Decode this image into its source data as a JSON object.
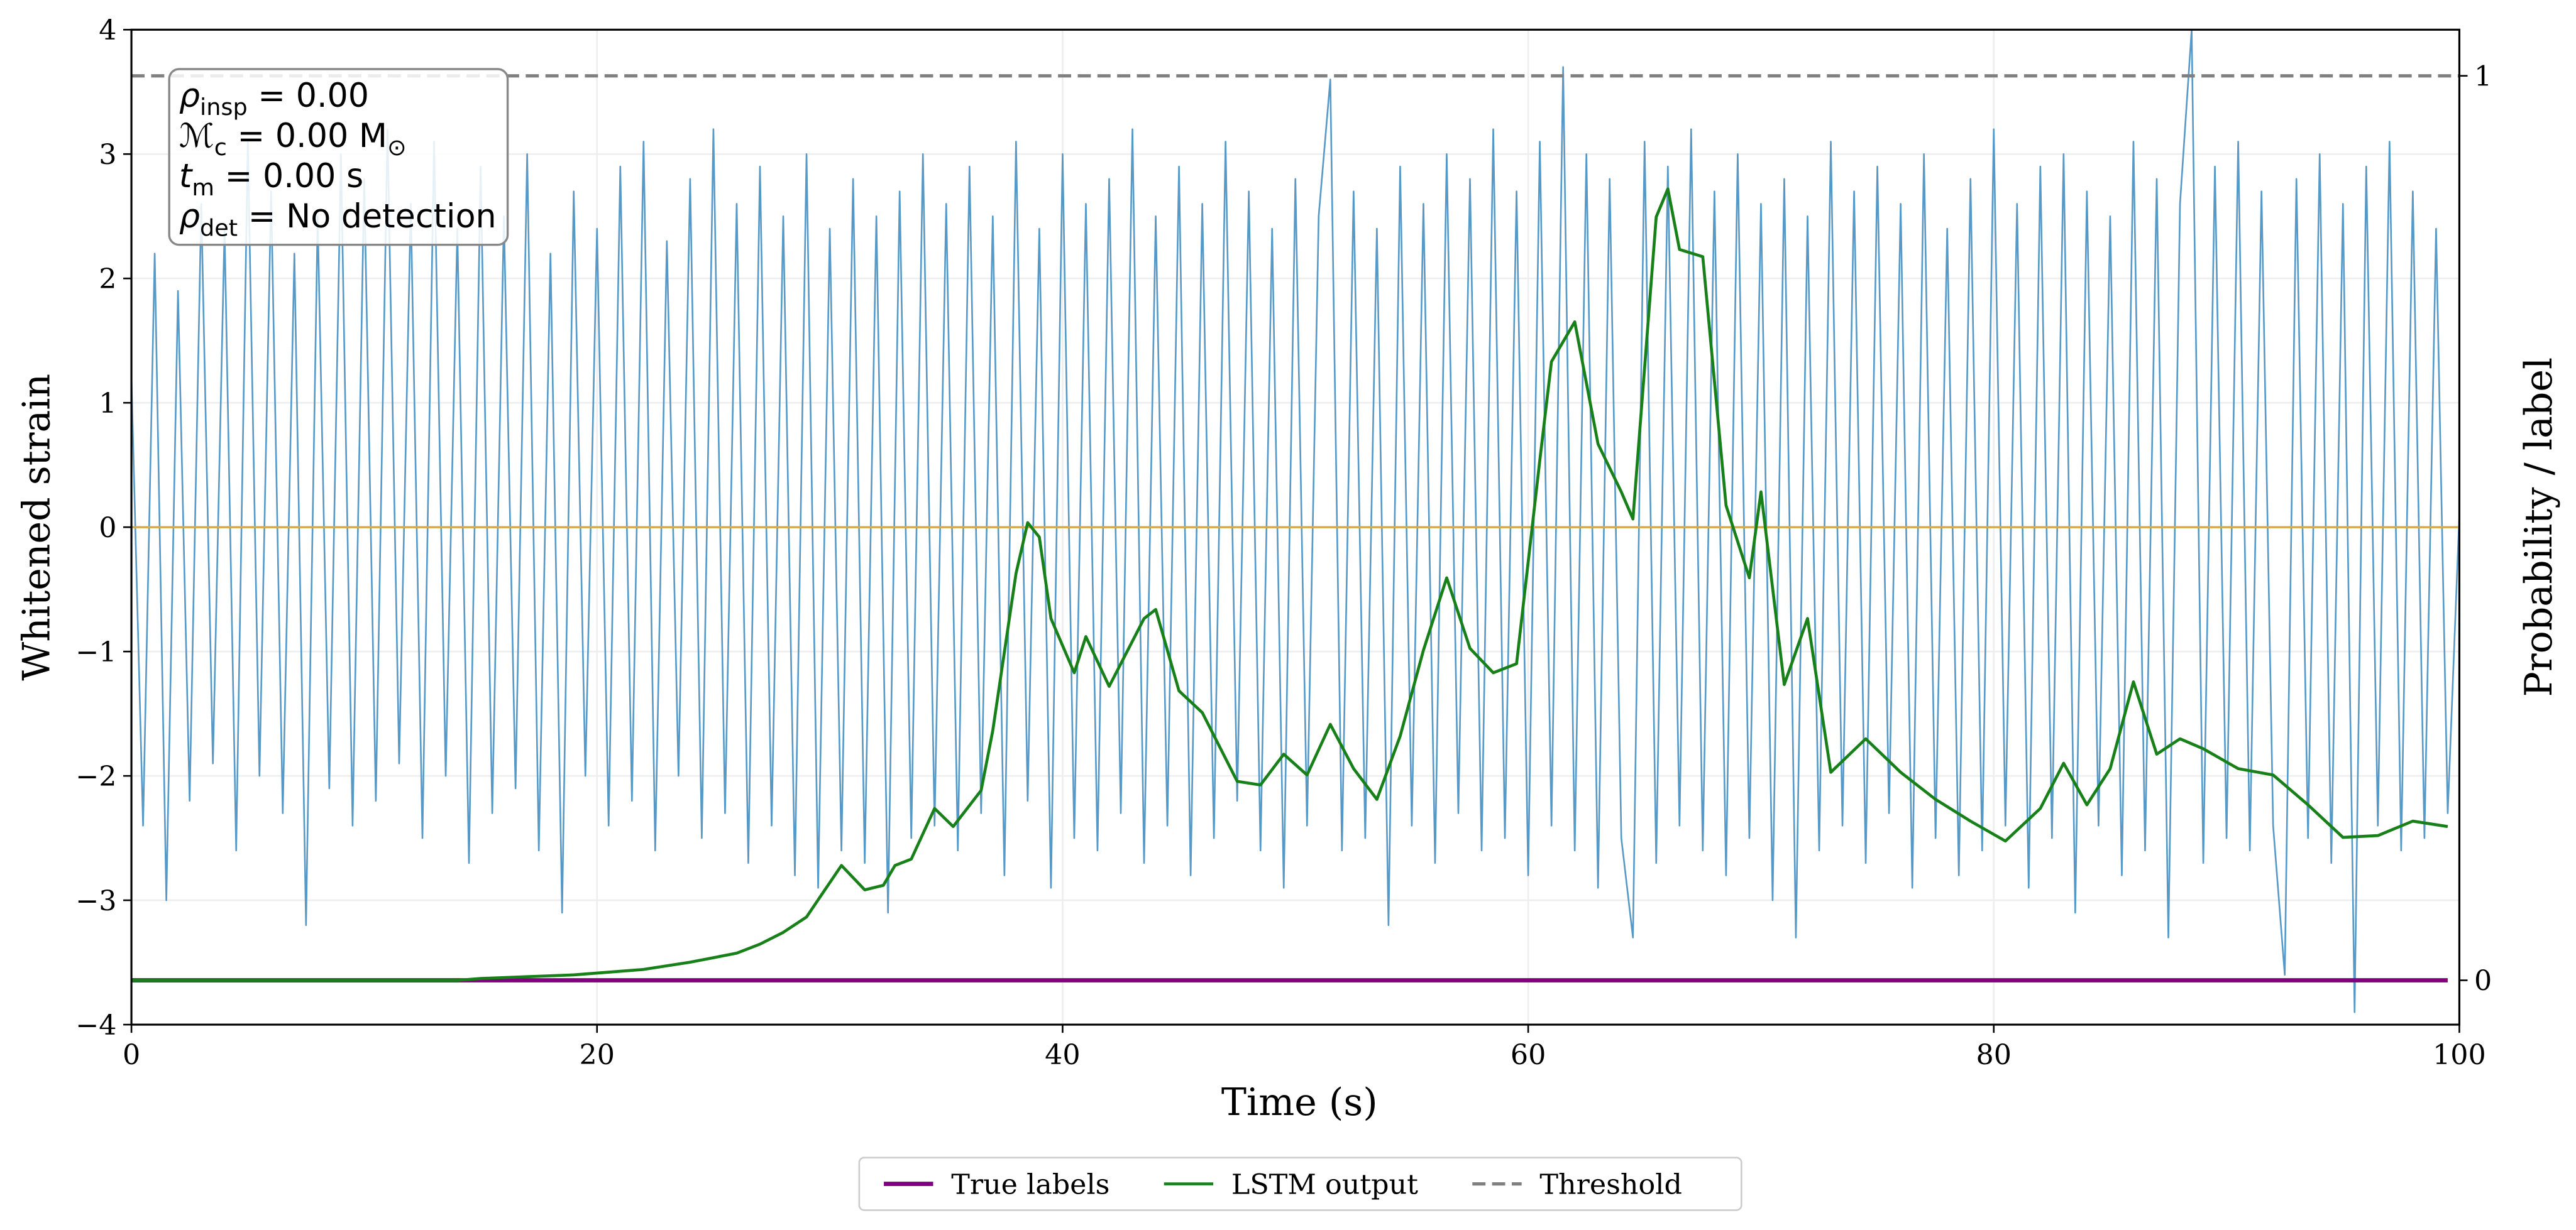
{
  "chart_data": {
    "type": "line",
    "xlabel": "Time (s)",
    "ylabel": "Whitened strain",
    "y2label": "Probability / label",
    "xlim": [
      0,
      100
    ],
    "ylim": [
      -4,
      4
    ],
    "y2lim": [
      -0.049,
      1.051
    ],
    "xticks": [
      0,
      20,
      40,
      60,
      80,
      100
    ],
    "yticks": [
      {
        "value": -4,
        "label": "−4"
      },
      {
        "value": -3,
        "label": "−3"
      },
      {
        "value": -2,
        "label": "−2"
      },
      {
        "value": -1,
        "label": "−1"
      },
      0,
      1,
      2,
      3,
      4
    ],
    "y2ticks": [
      0,
      1
    ],
    "grid": true,
    "legend": "lower center",
    "hlines": [
      {
        "y": 0,
        "color": "#d4aa4c"
      }
    ],
    "annotation": [
      {
        "symbol": "ρ",
        "sub": "insp",
        "text": " = 0.00"
      },
      {
        "symbol": "ℳ",
        "sub": "c",
        "text": " = 0.00 M",
        "sub2": "⊙"
      },
      {
        "symbol": "t",
        "sub": "m",
        "text": " = 0.00 s"
      },
      {
        "symbol": "ρ",
        "sub": "det",
        "text": " = No detection"
      }
    ],
    "series": [
      {
        "color": "#5698c6",
        "linestyle": "solid",
        "x": [
          0,
          0.5,
          1,
          1.5,
          2,
          2.5,
          3,
          3.5,
          4,
          4.5,
          5,
          5.5,
          6,
          6.5,
          7,
          7.5,
          8,
          8.5,
          9,
          9.5,
          10,
          10.5,
          11,
          11.5,
          12,
          12.5,
          13,
          13.5,
          14,
          14.5,
          15,
          15.5,
          16,
          16.5,
          17,
          17.5,
          18,
          18.5,
          19,
          19.5,
          20,
          20.5,
          21,
          21.5,
          22,
          22.5,
          23,
          23.5,
          24,
          24.5,
          25,
          25.5,
          26,
          26.5,
          27,
          27.5,
          28,
          28.5,
          29,
          29.5,
          30,
          30.5,
          31,
          31.5,
          32,
          32.5,
          33,
          33.5,
          34,
          34.5,
          35,
          35.5,
          36,
          36.5,
          37,
          37.5,
          38,
          38.5,
          39,
          39.5,
          40,
          40.5,
          41,
          41.5,
          42,
          42.5,
          43,
          43.5,
          44,
          44.5,
          45,
          45.5,
          46,
          46.5,
          47,
          47.5,
          48,
          48.5,
          49,
          49.5,
          50,
          50.5,
          51,
          51.5,
          52,
          52.5,
          53,
          53.5,
          54,
          54.5,
          55,
          55.5,
          56,
          56.5,
          57,
          57.5,
          58,
          58.5,
          59,
          59.5,
          60,
          60.5,
          61,
          61.5,
          62,
          62.5,
          63,
          63.5,
          64,
          64.5,
          65,
          65.5,
          66,
          66.5,
          67,
          67.5,
          68,
          68.5,
          69,
          69.5,
          70,
          70.5,
          71,
          71.5,
          72,
          72.5,
          73,
          73.5,
          74,
          74.5,
          75,
          75.5,
          76,
          76.5,
          77,
          77.5,
          78,
          78.5,
          79,
          79.5,
          80,
          80.5,
          81,
          81.5,
          82,
          82.5,
          83,
          83.5,
          84,
          84.5,
          85,
          85.5,
          86,
          86.5,
          87,
          87.5,
          88,
          88.5,
          89,
          89.5,
          90,
          90.5,
          91,
          91.5,
          92,
          92.5,
          93,
          93.5,
          94,
          94.5,
          95,
          95.5,
          96,
          96.5,
          97,
          97.5,
          98,
          98.5,
          99,
          99.5,
          100
        ],
        "values": [
          1.2,
          -2.4,
          2.2,
          -3.0,
          1.9,
          -2.2,
          2.6,
          -1.9,
          2.4,
          -2.6,
          3.1,
          -2.0,
          2.7,
          -2.3,
          2.2,
          -3.2,
          2.5,
          -2.1,
          3.0,
          -2.4,
          2.8,
          -2.2,
          3.2,
          -1.9,
          2.6,
          -2.5,
          3.1,
          -2.0,
          2.4,
          -2.7,
          2.9,
          -2.3,
          2.5,
          -2.1,
          3.0,
          -2.6,
          2.2,
          -3.1,
          2.7,
          -2.0,
          2.4,
          -2.4,
          2.9,
          -2.2,
          3.1,
          -2.6,
          2.3,
          -2.0,
          2.8,
          -2.5,
          3.2,
          -2.3,
          2.6,
          -2.7,
          2.9,
          -2.4,
          2.5,
          -2.8,
          3.0,
          -2.9,
          2.4,
          -2.6,
          2.8,
          -2.7,
          2.5,
          -3.1,
          2.7,
          -2.5,
          3.0,
          -2.4,
          2.6,
          -2.6,
          2.9,
          -2.3,
          2.5,
          -2.8,
          3.1,
          -2.2,
          2.4,
          -2.9,
          3.0,
          -2.5,
          2.6,
          -2.6,
          2.8,
          -2.3,
          3.2,
          -2.7,
          2.5,
          -2.4,
          2.9,
          -2.8,
          2.6,
          -2.5,
          3.1,
          -2.2,
          2.7,
          -2.6,
          2.4,
          -2.9,
          2.8,
          -2.4,
          2.5,
          3.6,
          -2.6,
          2.7,
          -2.5,
          2.4,
          -3.2,
          2.9,
          -2.4,
          2.6,
          -2.7,
          3.0,
          -2.3,
          2.8,
          -2.6,
          3.2,
          -2.5,
          2.7,
          -2.8,
          3.1,
          -2.4,
          3.7,
          -2.6,
          3.0,
          -2.9,
          2.8,
          -2.5,
          -3.3,
          3.1,
          -2.7,
          2.9,
          -2.4,
          3.2,
          -2.6,
          2.7,
          -2.8,
          3.0,
          -2.5,
          2.6,
          -3.0,
          2.8,
          -3.3,
          2.5,
          -2.6,
          3.1,
          -2.4,
          2.7,
          -2.7,
          2.9,
          -2.3,
          2.6,
          -2.9,
          3.0,
          -2.5,
          2.4,
          -2.8,
          2.8,
          -2.6,
          3.2,
          -2.4,
          2.6,
          -2.9,
          2.9,
          -2.5,
          3.0,
          -3.1,
          2.7,
          -2.4,
          2.5,
          -2.8,
          3.1,
          -2.6,
          2.8,
          -3.3,
          2.6,
          4.0,
          -2.7,
          2.9,
          -2.5,
          3.1,
          -2.6,
          2.7,
          -2.4,
          -3.6,
          2.8,
          -2.5,
          3.0,
          -2.7,
          2.6,
          -3.9,
          2.9,
          -2.4,
          3.1,
          -2.6,
          2.7,
          -2.5,
          2.4,
          -2.3,
          0.1
        ]
      },
      {
        "name": "True labels",
        "color": "#800080",
        "linestyle": "solid",
        "axis": "y2",
        "x": [
          0,
          99.5
        ],
        "values": [
          0,
          0
        ]
      },
      {
        "name": "LSTM output",
        "color": "#188018",
        "linestyle": "solid",
        "axis": "y2",
        "x": [
          0,
          14,
          15,
          16,
          17,
          18,
          19,
          20,
          21,
          22,
          23,
          24,
          25,
          26,
          27,
          28,
          29,
          29.5,
          30.5,
          31.5,
          32.3,
          32.8,
          33.5,
          34.5,
          35.3,
          36.5,
          37,
          38,
          38.5,
          39,
          39.5,
          40.5,
          41,
          42,
          43.5,
          44,
          45,
          46,
          47.5,
          48.5,
          49.5,
          50.5,
          51.5,
          52.5,
          53.5,
          54.5,
          55.5,
          56.5,
          57.5,
          58.5,
          59.5,
          60.5,
          61,
          62,
          63,
          64,
          64.5,
          65.5,
          66,
          66.5,
          67.5,
          68.5,
          69.5,
          70,
          71,
          72,
          73,
          74.5,
          76,
          77.5,
          79,
          80.5,
          82,
          83,
          84,
          85,
          86,
          87,
          88,
          89,
          90.5,
          92,
          93.5,
          95,
          96.5,
          98,
          99.5
        ],
        "values": [
          0,
          0,
          0.002,
          0.003,
          0.004,
          0.005,
          0.006,
          0.008,
          0.01,
          0.012,
          0.016,
          0.02,
          0.025,
          0.03,
          0.04,
          0.053,
          0.07,
          0.089,
          0.127,
          0.1,
          0.105,
          0.127,
          0.134,
          0.19,
          0.17,
          0.21,
          0.276,
          0.45,
          0.506,
          0.49,
          0.4,
          0.34,
          0.38,
          0.325,
          0.4,
          0.41,
          0.32,
          0.296,
          0.22,
          0.216,
          0.25,
          0.227,
          0.283,
          0.234,
          0.2,
          0.27,
          0.365,
          0.445,
          0.367,
          0.34,
          0.35,
          0.575,
          0.684,
          0.728,
          0.593,
          0.54,
          0.51,
          0.844,
          0.875,
          0.808,
          0.8,
          0.525,
          0.445,
          0.54,
          0.327,
          0.4,
          0.23,
          0.267,
          0.23,
          0.2,
          0.176,
          0.154,
          0.19,
          0.24,
          0.194,
          0.234,
          0.33,
          0.25,
          0.267,
          0.256,
          0.234,
          0.227,
          0.194,
          0.158,
          0.16,
          0.176,
          0.17
        ]
      },
      {
        "name": "Threshold",
        "color": "#808080",
        "linestyle": "dashed",
        "axis": "y2",
        "x": [
          0,
          100
        ],
        "values": [
          1,
          1
        ]
      }
    ]
  }
}
